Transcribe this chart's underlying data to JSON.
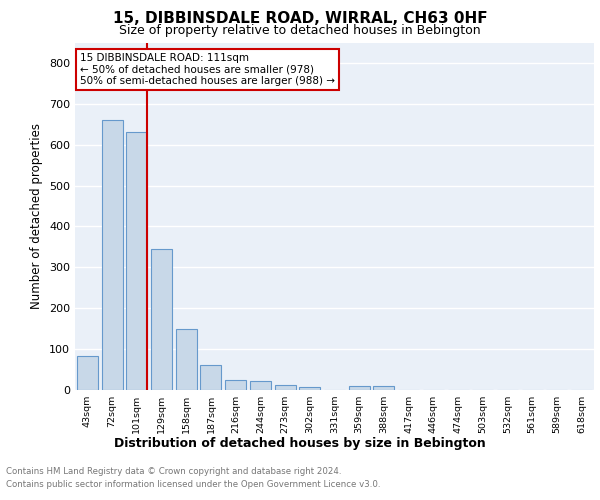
{
  "title": "15, DIBBINSDALE ROAD, WIRRAL, CH63 0HF",
  "subtitle": "Size of property relative to detached houses in Bebington",
  "xlabel": "Distribution of detached houses by size in Bebington",
  "ylabel": "Number of detached properties",
  "bin_labels": [
    "43sqm",
    "72sqm",
    "101sqm",
    "129sqm",
    "158sqm",
    "187sqm",
    "216sqm",
    "244sqm",
    "273sqm",
    "302sqm",
    "331sqm",
    "359sqm",
    "388sqm",
    "417sqm",
    "446sqm",
    "474sqm",
    "503sqm",
    "532sqm",
    "561sqm",
    "589sqm",
    "618sqm"
  ],
  "bar_values": [
    82,
    660,
    630,
    345,
    148,
    60,
    25,
    22,
    12,
    8,
    0,
    10,
    10,
    0,
    0,
    0,
    0,
    0,
    0,
    0,
    0
  ],
  "bar_color": "#c8d8e8",
  "bar_edge_color": "#6699cc",
  "red_line_x": 2.42,
  "red_line_label": "15 DIBBINSDALE ROAD: 111sqm",
  "annotation_line1": "← 50% of detached houses are smaller (978)",
  "annotation_line2": "50% of semi-detached houses are larger (988) →",
  "ylim": [
    0,
    850
  ],
  "yticks": [
    0,
    100,
    200,
    300,
    400,
    500,
    600,
    700,
    800
  ],
  "footer_text1": "Contains HM Land Registry data © Crown copyright and database right 2024.",
  "footer_text2": "Contains public sector information licensed under the Open Government Licence v3.0.",
  "plot_bg_color": "#eaf0f8",
  "grid_color": "white",
  "annotation_box_edge": "#cc0000"
}
